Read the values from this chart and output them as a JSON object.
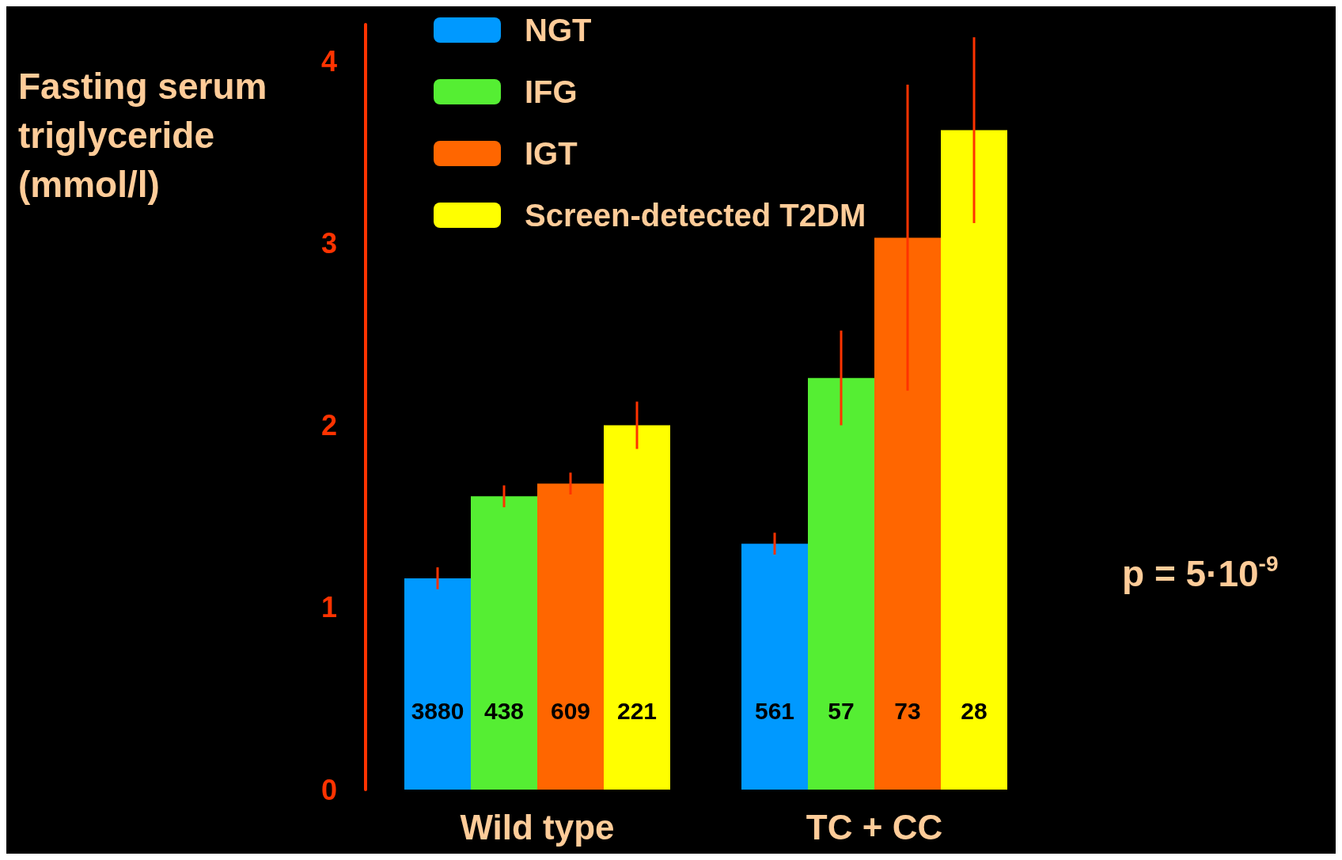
{
  "chart_data": {
    "type": "bar",
    "ylabel": "Fasting serum\ntriglyceride\n(mmol/l)",
    "categories": [
      "Wild type",
      "TC + CC"
    ],
    "series": [
      {
        "name": "NGT",
        "color": "#0099ff",
        "values": [
          1.16,
          1.35
        ],
        "errors": [
          0.06,
          0.06
        ]
      },
      {
        "name": "IFG",
        "color": "#55ee33",
        "values": [
          1.61,
          2.26
        ],
        "errors": [
          0.06,
          0.26
        ]
      },
      {
        "name": "IGT",
        "color": "#ff6600",
        "values": [
          1.68,
          3.03
        ],
        "errors": [
          0.06,
          0.84
        ]
      },
      {
        "name": "Screen-detected T2DM",
        "color": "#ffff00",
        "values": [
          2.0,
          3.62
        ],
        "errors": [
          0.13,
          0.51
        ]
      }
    ],
    "ylim": [
      0,
      4.2
    ],
    "yticks": [
      0,
      1,
      2,
      3,
      4
    ],
    "grid": false,
    "legend": "top",
    "annotations": [
      "3880",
      "438",
      "609",
      "221",
      "561",
      "57",
      "73",
      "28",
      "p = 5·10$^{-9}$"
    ]
  }
}
